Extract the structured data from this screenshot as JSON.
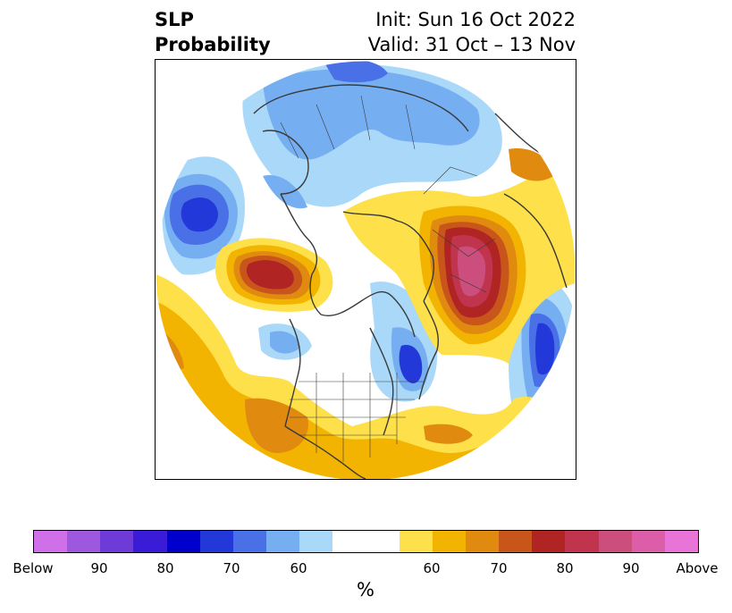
{
  "title": {
    "left_line1": "SLP",
    "left_line2": "Probability",
    "right_line1": "Init: Sun 16 Oct 2022",
    "right_line2": "Valid: 31 Oct – 13 Nov"
  },
  "colorbar": {
    "unit": "%",
    "labels": [
      "Below",
      "90",
      "80",
      "70",
      "60",
      "60",
      "70",
      "80",
      "90",
      "Above"
    ],
    "colors": [
      "#d070e8",
      "#9e58e0",
      "#6e3ad8",
      "#3a1cd8",
      "#0000cc",
      "#2238d8",
      "#4a70e8",
      "#76aef2",
      "#aad8f8",
      "#ffffff",
      "#fee04a",
      "#f2b400",
      "#e08a10",
      "#c8561a",
      "#b02424",
      "#c0344e",
      "#cc4e7c",
      "#dc5ea8",
      "#e874d8"
    ]
  },
  "map": {
    "projection": "polar-stereographic",
    "variable": "SLP probability",
    "colors": {
      "below_light": "#aad8f8",
      "below_mid": "#76aef2",
      "below_strong": "#4a70e8",
      "below_deep": "#2238d8",
      "above_light": "#fee04a",
      "above_mid": "#f2b400",
      "above_orange": "#e08a10",
      "above_rust": "#c8561a",
      "above_red": "#b02424",
      "above_crimson": "#c0344e",
      "above_pink": "#cc4e7c",
      "coast": "#3a3a3a"
    }
  }
}
